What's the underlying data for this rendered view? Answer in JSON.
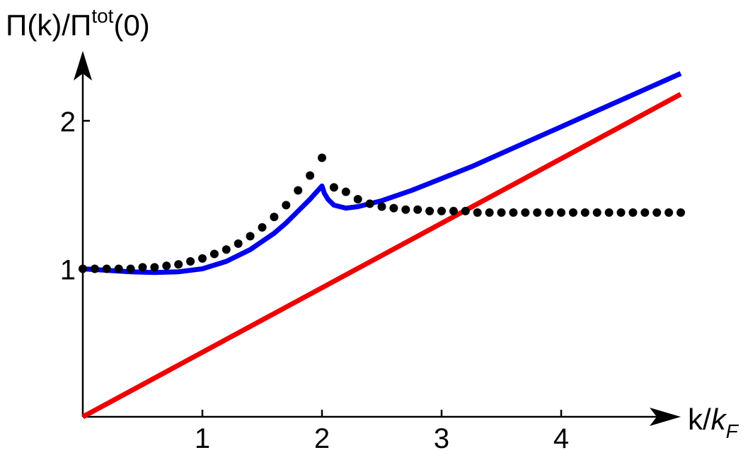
{
  "chart_data": {
    "type": "line",
    "title": "",
    "ylabel": {
      "prefix": "Π(k)/Π",
      "sup": "tot",
      "suffix": "(0)"
    },
    "xlabel": {
      "prefix": "k/",
      "var": "k",
      "sub": "F"
    },
    "xlim": [
      0,
      5
    ],
    "ylim": [
      0,
      2.4
    ],
    "x_ticks": [
      1,
      2,
      3,
      4
    ],
    "y_ticks": [
      1,
      2
    ],
    "x_tick_labels": [
      "1",
      "2",
      "3",
      "4"
    ],
    "y_tick_labels": [
      "1",
      "2"
    ],
    "grid": false,
    "legend": "none",
    "series": [
      {
        "style": "dotted",
        "color": "#000000",
        "x": [
          0.0,
          0.1,
          0.2,
          0.3,
          0.4,
          0.5,
          0.6,
          0.7,
          0.8,
          0.9,
          1.0,
          1.1,
          1.2,
          1.3,
          1.4,
          1.5,
          1.6,
          1.7,
          1.8,
          1.9,
          2.0,
          2.1,
          2.2,
          2.3,
          2.4,
          2.5,
          2.6,
          2.7,
          2.8,
          2.9,
          3.0,
          3.1,
          3.2,
          3.3,
          3.4,
          3.5,
          3.6,
          3.7,
          3.8,
          3.9,
          4.0,
          4.1,
          4.2,
          4.3,
          4.4,
          4.5,
          4.6,
          4.7,
          4.8,
          4.9,
          5.0
        ],
        "y": [
          1.0,
          1.0,
          1.0,
          1.0,
          1.0,
          1.01,
          1.01,
          1.02,
          1.03,
          1.05,
          1.07,
          1.1,
          1.13,
          1.17,
          1.22,
          1.28,
          1.35,
          1.43,
          1.53,
          1.63,
          1.75,
          1.55,
          1.52,
          1.47,
          1.44,
          1.42,
          1.41,
          1.4,
          1.4,
          1.39,
          1.39,
          1.39,
          1.39,
          1.38,
          1.38,
          1.38,
          1.38,
          1.38,
          1.38,
          1.38,
          1.38,
          1.38,
          1.38,
          1.38,
          1.38,
          1.38,
          1.38,
          1.38,
          1.38,
          1.38,
          1.38
        ]
      },
      {
        "style": "solid",
        "color": "#0000ee",
        "x": [
          0.0,
          0.2,
          0.4,
          0.6,
          0.8,
          1.0,
          1.2,
          1.4,
          1.6,
          1.7,
          1.8,
          1.9,
          2.0,
          2.02,
          2.05,
          2.1,
          2.2,
          2.3,
          2.5,
          2.75,
          3.0,
          3.25,
          3.5,
          3.75,
          4.0,
          4.25,
          4.5,
          4.75,
          5.0
        ],
        "y": [
          1.0,
          0.99,
          0.98,
          0.975,
          0.98,
          1.0,
          1.05,
          1.13,
          1.24,
          1.31,
          1.39,
          1.47,
          1.56,
          1.51,
          1.47,
          1.43,
          1.41,
          1.42,
          1.46,
          1.53,
          1.61,
          1.69,
          1.78,
          1.87,
          1.96,
          2.05,
          2.14,
          2.23,
          2.32
        ]
      },
      {
        "style": "solid",
        "color": "#ee0000",
        "x": [
          0.0,
          5.0
        ],
        "y": [
          0.0,
          2.18
        ]
      }
    ]
  }
}
